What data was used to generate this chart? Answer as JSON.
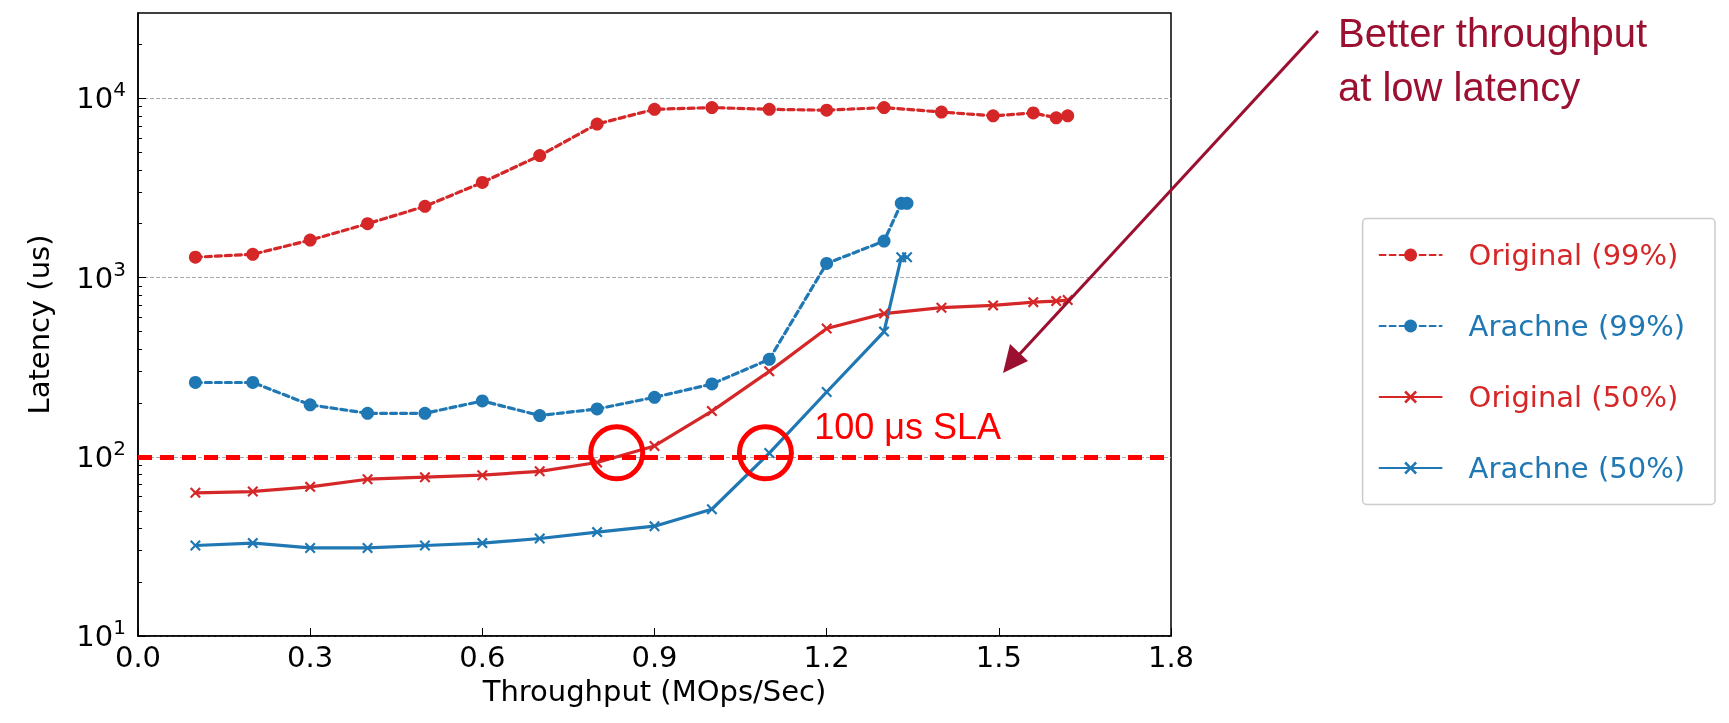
{
  "chart_data": {
    "type": "line",
    "xlabel": "Throughput (MOps/Sec)",
    "ylabel": "Latency (us)",
    "log": "y",
    "xlim": [
      0,
      1.8
    ],
    "xticks": [
      {
        "value": 0,
        "label": "0.0"
      },
      0.3,
      0.6,
      0.9,
      1.2,
      1.5,
      1.8
    ],
    "ylim": [
      10,
      30000
    ],
    "yticks": [
      {
        "value": 10,
        "label": "10$^{1}$"
      },
      {
        "value": 100,
        "label": "10$^{2}$"
      },
      {
        "value": 1000,
        "label": "10$^{3}$"
      },
      {
        "value": 10000,
        "label": "10$^{4}$"
      }
    ],
    "grid": "y",
    "legend": "right",
    "series": [
      {
        "name": "Original (99%)",
        "color": "#d62728",
        "marker": "circle",
        "line_style": "dashed",
        "x": [
          0.1,
          0.2,
          0.3,
          0.4,
          0.5,
          0.6,
          0.7,
          0.8,
          0.9,
          1.0,
          1.1,
          1.2,
          1.3,
          1.4,
          1.49,
          1.56,
          1.6,
          1.62
        ],
        "values": [
          1300,
          1350,
          1620,
          2000,
          2500,
          3400,
          4800,
          7200,
          8700,
          8900,
          8700,
          8600,
          8900,
          8400,
          8000,
          8300,
          7800,
          8000
        ]
      },
      {
        "name": "Arachne (99%)",
        "color": "#1f77b4",
        "marker": "circle",
        "line_style": "dashed",
        "x": [
          0.1,
          0.2,
          0.3,
          0.4,
          0.5,
          0.6,
          0.7,
          0.8,
          0.9,
          1.0,
          1.1,
          1.2,
          1.3,
          1.33,
          1.34
        ],
        "values": [
          260,
          260,
          195,
          175,
          175,
          205,
          170,
          185,
          215,
          255,
          350,
          1200,
          1600,
          2600,
          2600
        ]
      },
      {
        "name": "Original (50%)",
        "color": "#d62728",
        "marker": "cross",
        "line_style": "solid",
        "x": [
          0.1,
          0.2,
          0.3,
          0.4,
          0.5,
          0.6,
          0.7,
          0.8,
          0.9,
          1.0,
          1.1,
          1.2,
          1.3,
          1.4,
          1.49,
          1.56,
          1.6,
          1.62
        ],
        "values": [
          63,
          64,
          68,
          75,
          77,
          79,
          83,
          93,
          115,
          180,
          300,
          520,
          630,
          680,
          700,
          730,
          740,
          750
        ]
      },
      {
        "name": "Arachne (50%)",
        "color": "#1f77b4",
        "marker": "cross",
        "line_style": "solid",
        "x": [
          0.1,
          0.2,
          0.3,
          0.4,
          0.5,
          0.6,
          0.7,
          0.8,
          0.9,
          1.0,
          1.1,
          1.2,
          1.3,
          1.33,
          1.34
        ],
        "values": [
          32,
          33,
          31,
          31,
          32,
          33,
          35,
          38,
          41,
          51,
          105,
          230,
          500,
          1300,
          1300
        ]
      }
    ],
    "ref_lines": [
      {
        "axis": "y",
        "value": 100,
        "label": "100 μs SLA",
        "color": "#ff0000",
        "line_style": "dashed"
      }
    ],
    "annotations": [
      "Better throughput at low latency"
    ]
  }
}
